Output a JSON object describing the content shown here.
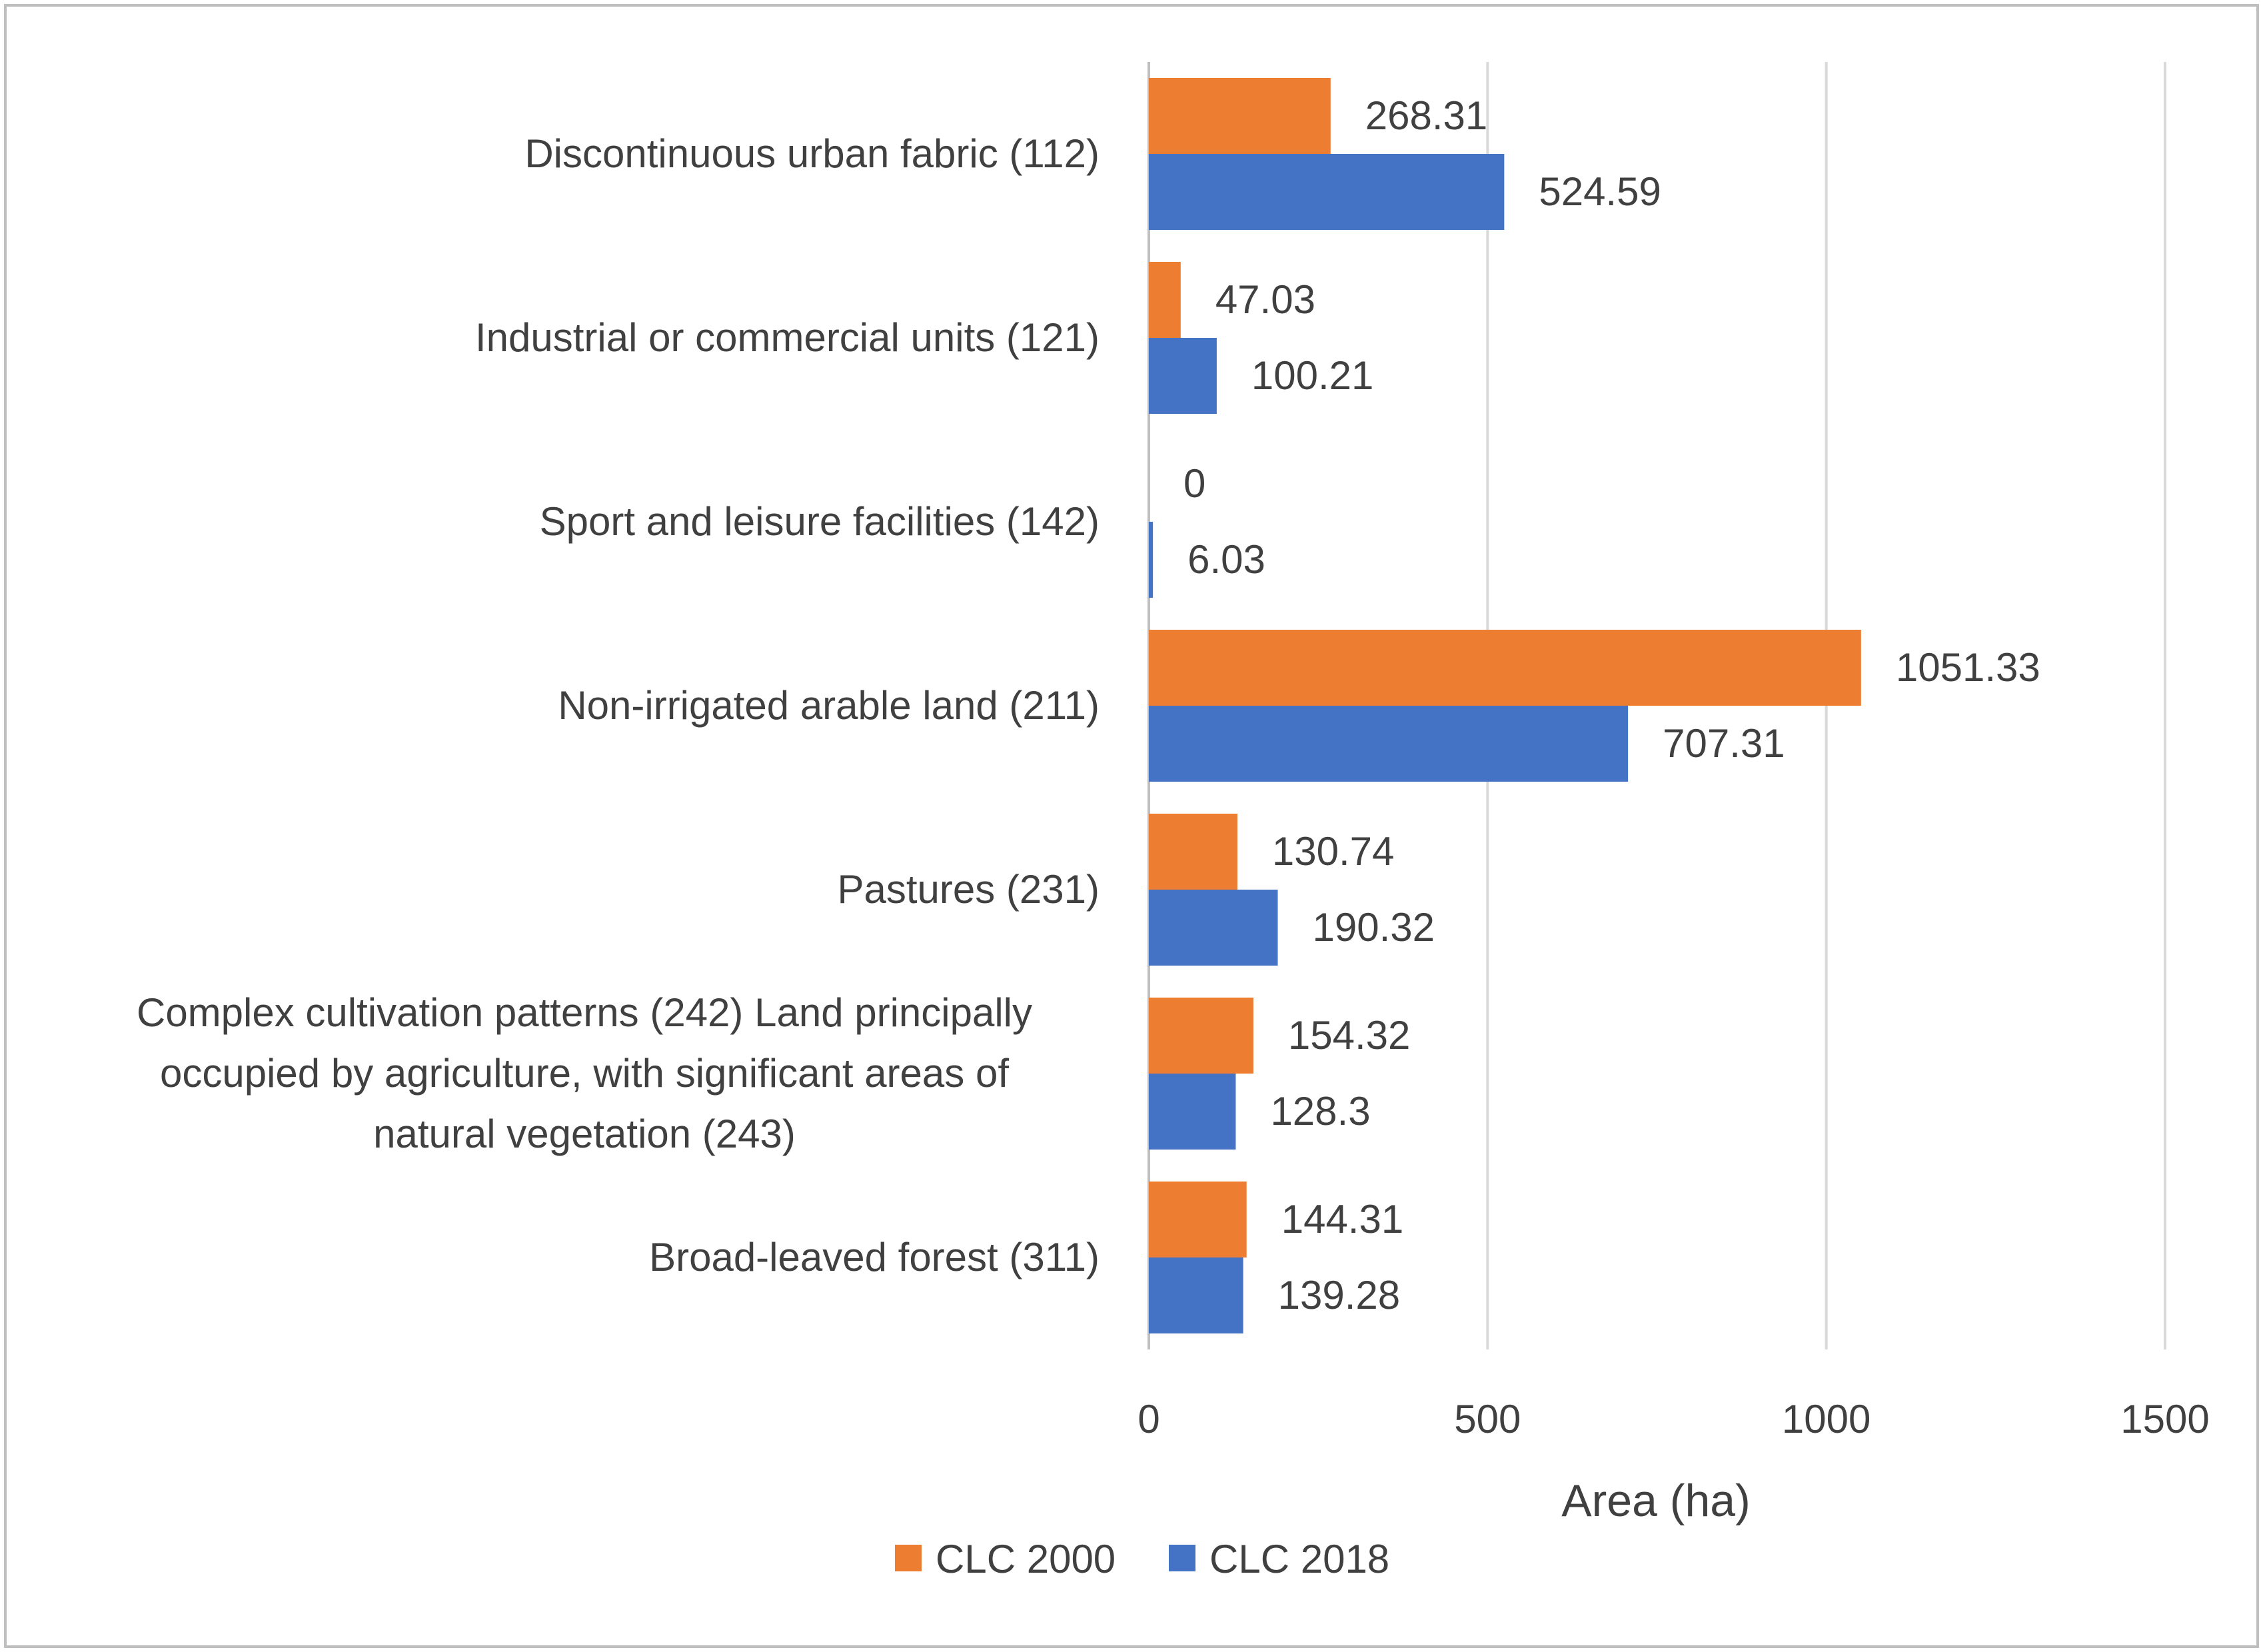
{
  "chart_data": {
    "type": "bar",
    "orientation": "horizontal",
    "title": "",
    "xlabel": "Area (ha)",
    "ylabel": "",
    "xlim": [
      0,
      1500
    ],
    "xticks": [
      0,
      500,
      1000,
      1500
    ],
    "grid": true,
    "legend_position": "bottom",
    "categories": [
      [
        "Discontinuous urban fabric (112)"
      ],
      [
        "Industrial or commercial units (121)"
      ],
      [
        "Sport and leisure facilities (142)"
      ],
      [
        "Non-irrigated arable land (211)"
      ],
      [
        "Pastures (231)"
      ],
      [
        "Complex cultivation patterns (242) Land principally",
        "occupied by agriculture, with significant areas of",
        "natural vegetation (243)"
      ],
      [
        "Broad-leaved forest (311)"
      ]
    ],
    "series": [
      {
        "name": "CLC 2000",
        "color": "#ED7D31",
        "values": [
          268.31,
          47.03,
          0,
          1051.33,
          130.74,
          154.32,
          144.31
        ]
      },
      {
        "name": "CLC 2018",
        "color": "#4472C4",
        "values": [
          524.59,
          100.21,
          6.03,
          707.31,
          190.32,
          128.3,
          139.28
        ]
      }
    ]
  }
}
